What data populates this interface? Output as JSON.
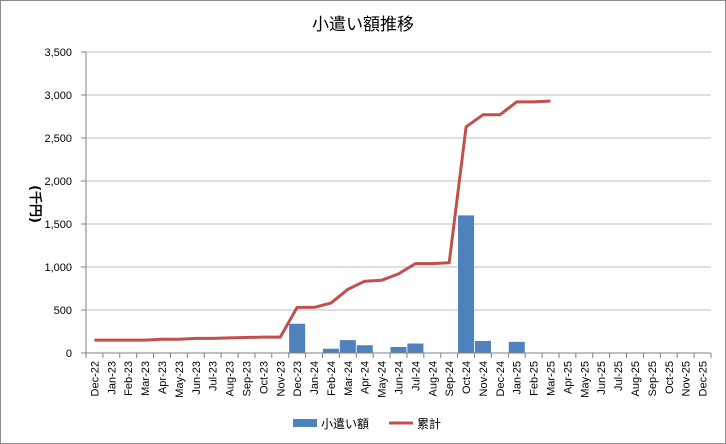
{
  "chart_data": {
    "type": "bar+line",
    "title": "小遣い額推移",
    "ylabel": "(千円)",
    "xlabel": "",
    "ylim": [
      0,
      3500
    ],
    "yticks": [
      0,
      500,
      1000,
      1500,
      2000,
      2500,
      3000,
      3500
    ],
    "ytick_labels": [
      "0",
      "500",
      "1,000",
      "1,500",
      "2,000",
      "2,500",
      "3,000",
      "3,500"
    ],
    "grid": true,
    "legend_position": "bottom",
    "categories": [
      "Dec-22",
      "Jan-23",
      "Feb-23",
      "Mar-23",
      "Apr-23",
      "May-23",
      "Jun-23",
      "Jul-23",
      "Aug-23",
      "Sep-23",
      "Oct-23",
      "Nov-23",
      "Dec-23",
      "Jan-24",
      "Feb-24",
      "Mar-24",
      "Apr-24",
      "May-24",
      "Jun-24",
      "Jul-24",
      "Aug-24",
      "Sep-24",
      "Oct-24",
      "Nov-24",
      "Dec-24",
      "Jan-25",
      "Feb-25",
      "Mar-25",
      "Apr-25",
      "May-25",
      "Jun-25",
      "Jul-25",
      "Aug-25",
      "Sep-25",
      "Oct-25",
      "Nov-25",
      "Dec-25"
    ],
    "series": [
      {
        "name": "小遣い額",
        "kind": "bar",
        "color": "#4f81bd",
        "values": [
          0,
          0,
          0,
          0,
          0,
          0,
          0,
          0,
          0,
          0,
          0,
          0,
          340,
          0,
          50,
          150,
          90,
          0,
          70,
          110,
          0,
          0,
          1600,
          140,
          0,
          130,
          0,
          0,
          null,
          null,
          null,
          null,
          null,
          null,
          null,
          null,
          null
        ]
      },
      {
        "name": "累計",
        "kind": "line",
        "color": "#c0504d",
        "values": [
          150,
          150,
          150,
          150,
          160,
          160,
          170,
          170,
          175,
          180,
          185,
          185,
          530,
          530,
          580,
          740,
          835,
          845,
          920,
          1040,
          1040,
          1050,
          2630,
          2770,
          2770,
          2920,
          2920,
          2930,
          null,
          null,
          null,
          null,
          null,
          null,
          null,
          null,
          null
        ]
      }
    ]
  }
}
